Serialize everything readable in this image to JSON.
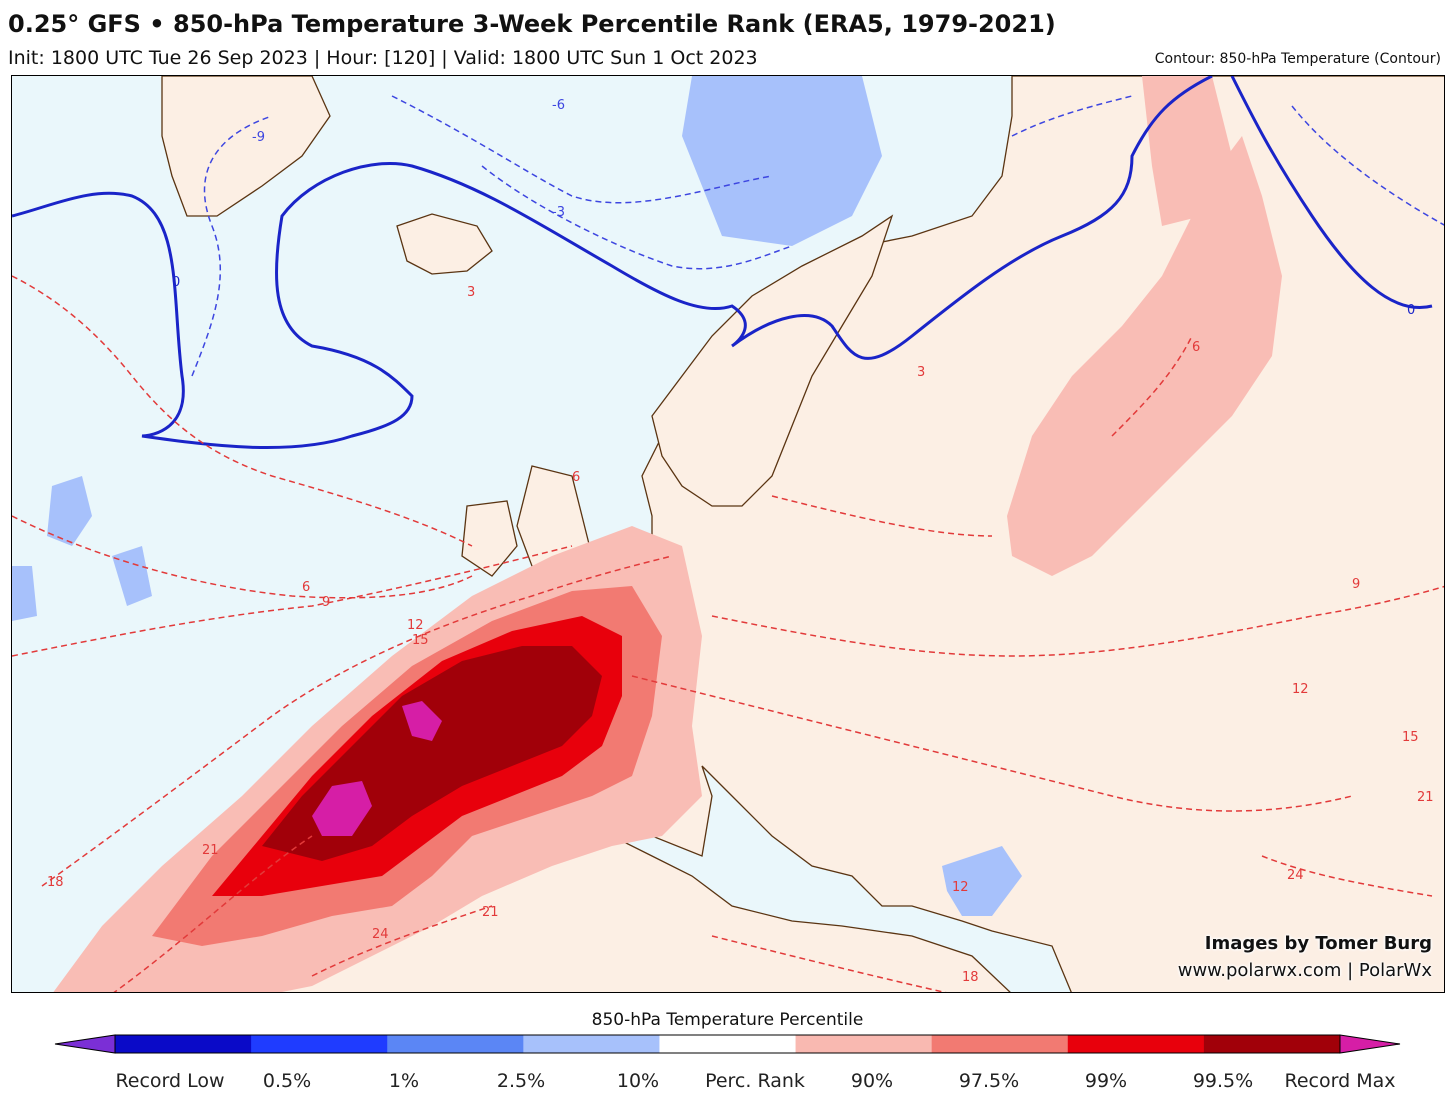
{
  "header": {
    "title": "0.25° GFS • 850-hPa Temperature 3-Week Percentile Rank (ERA5, 1979-2021)",
    "subtitle": "Init: 1800 UTC Tue 26 Sep 2023 | Hour: [120] | Valid: 1800 UTC Sun 1 Oct 2023",
    "contour_note": "Contour: 850-hPa Temperature (Contour)"
  },
  "credits": {
    "line1": "Images by Tomer Burg",
    "line2": "www.polarwx.com | PolarWx"
  },
  "colorbar": {
    "title": "850-hPa Temperature Percentile",
    "ticks": [
      "Record Low",
      "0.5%",
      "1%",
      "2.5%",
      "10%",
      "Perc. Rank",
      "90%",
      "97.5%",
      "99%",
      "99.5%",
      "Record Max"
    ],
    "colors": [
      "#7b2fd6",
      "#0a0ac8",
      "#1f3cff",
      "#5b86f5",
      "#a7c1fb",
      "#ffffff",
      "#f9b9b1",
      "#f27a72",
      "#e8000c",
      "#a10009",
      "#d61ea6"
    ]
  },
  "contour_labels": [
    "-9",
    "-6",
    "-3",
    "0",
    "3",
    "6",
    "9",
    "12",
    "15",
    "18",
    "21",
    "24"
  ],
  "map_colors": {
    "ocean": "#eaf7fb",
    "land": "#fcefe4",
    "p90": "#f9bdb5",
    "p975": "#f27a72",
    "p99": "#e8000c",
    "p995": "#a10009",
    "record_max": "#d61ea6",
    "low10": "#a7c1fb",
    "coast": "#5a3412",
    "zero_contour": "#1a24c8",
    "cold_contour": "#3d46e0",
    "warm_contour": "#e23a3a"
  }
}
